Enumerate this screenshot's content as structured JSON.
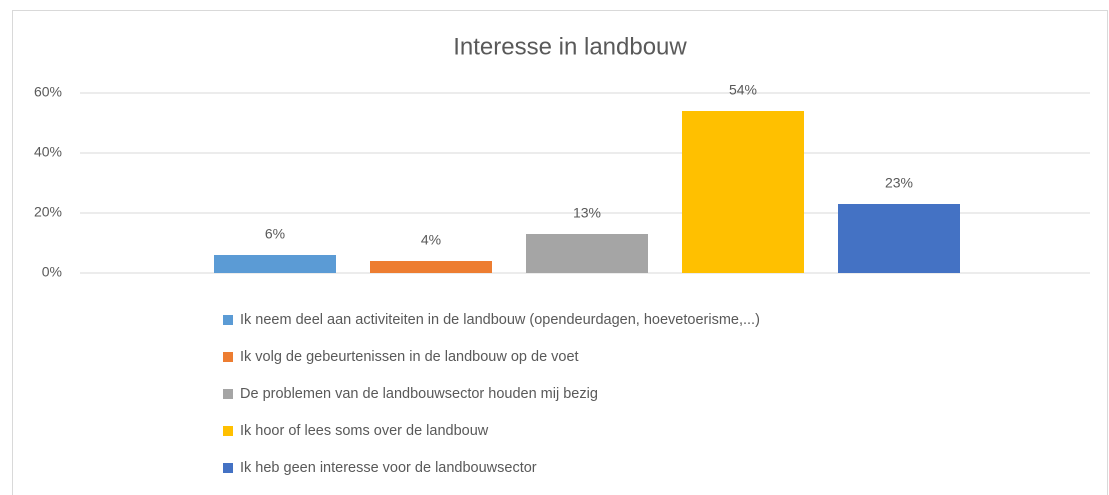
{
  "chart_data": {
    "type": "bar",
    "title": "Interesse in landbouw",
    "series": [
      {
        "name": "Ik neem deel aan activiteiten in de landbouw (opendeurdagen, hoevetoerisme,...)",
        "color": "#5b9bd5",
        "values": [
          6
        ],
        "value_labels": [
          "6%"
        ]
      },
      {
        "name": "Ik volg de gebeurtenissen in de landbouw op de voet",
        "color": "#ed7d31",
        "values": [
          4
        ],
        "value_labels": [
          "4%"
        ]
      },
      {
        "name": "De problemen van de landbouwsector houden mij bezig",
        "color": "#a5a5a5",
        "values": [
          13
        ],
        "value_labels": [
          "13%"
        ]
      },
      {
        "name": "Ik hoor of lees soms over de landbouw",
        "color": "#ffc000",
        "values": [
          54
        ],
        "value_labels": [
          "54%"
        ]
      },
      {
        "name": "Ik heb geen interesse voor de landbouwsector",
        "color": "#4472c4",
        "values": [
          23
        ],
        "value_labels": [
          "23%"
        ]
      }
    ],
    "ylim": [
      0,
      60
    ],
    "yticks": [
      {
        "value": 0,
        "label": "0%"
      },
      {
        "value": 20,
        "label": "20%"
      },
      {
        "value": 40,
        "label": "40%"
      },
      {
        "value": 60,
        "label": "60%"
      }
    ],
    "grid": true,
    "legend": "bottom"
  }
}
